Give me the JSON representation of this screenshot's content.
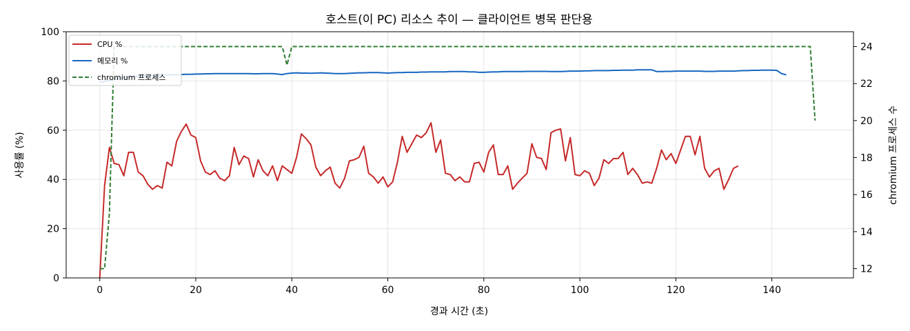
{
  "chart_data": {
    "type": "line",
    "title": "호스트(이 PC) 리소스 추이 — 클라이언트 병목 판단용",
    "xlabel": "경과 시간 (초)",
    "ylabel": "사용률 (%)",
    "y2label": "chromium 프로세스 수",
    "xlim": [
      -7,
      157
    ],
    "ylim": [
      0,
      100
    ],
    "y2lim": [
      11.5,
      24.8
    ],
    "xticks": [
      0,
      20,
      40,
      60,
      80,
      100,
      120,
      140
    ],
    "yticks": [
      0,
      20,
      40,
      60,
      80,
      100
    ],
    "y2ticks": [
      12,
      14,
      16,
      18,
      20,
      22,
      24
    ],
    "grid": true,
    "legend_position": "top-left",
    "series": [
      {
        "name": "CPU %",
        "axis": "left",
        "color": "#c62828",
        "style": "solid",
        "x_start": 0,
        "x_step": 1,
        "values": [
          0,
          37.5,
          53,
          46.5,
          46,
          41.5,
          51,
          51,
          43,
          41.5,
          38,
          36,
          37.5,
          36.5,
          47,
          45.5,
          55.5,
          59.5,
          62.5,
          58,
          57,
          47.5,
          43,
          42,
          43.5,
          40.5,
          39.5,
          41.5,
          53,
          46,
          49.5,
          48.5,
          41,
          48,
          43.5,
          41.5,
          45.5,
          39.5,
          45.5,
          44,
          42.5,
          49,
          58.5,
          56.5,
          54,
          45,
          41.5,
          43.5,
          45,
          38.5,
          36.5,
          40.5,
          47.5,
          48,
          49,
          53.5,
          42.5,
          41,
          38.5,
          41,
          37,
          39,
          47,
          57.5,
          51,
          54.5,
          58,
          57,
          59,
          63,
          51,
          56,
          42.5,
          42,
          39.5,
          41,
          39,
          39,
          46.5,
          47,
          43,
          51,
          54,
          42,
          42,
          45.5,
          36,
          38.5,
          40.5,
          42.5,
          54.5,
          49,
          48.5,
          44,
          59,
          60,
          60.5,
          47.5,
          57,
          42,
          41.5,
          43.5,
          42.5,
          37.5,
          40.5,
          48,
          46.5,
          48.5,
          48.5,
          51,
          42,
          44.5,
          42,
          38.5,
          39,
          38.5,
          44.5,
          52,
          48,
          50.5,
          46.5,
          52,
          57.5,
          57.5,
          50,
          57.5,
          44.5,
          41,
          43.5,
          44.5,
          36,
          40,
          44.5,
          45.5
        ]
      },
      {
        "name": "메모리 %",
        "axis": "left",
        "color": "#1565c0",
        "style": "solid",
        "x_start": 0,
        "x_step": 1,
        "values": [
          79.5,
          79.8,
          80.2,
          80.7,
          81,
          81.3,
          81.6,
          81.8,
          82,
          82.1,
          82.2,
          82.3,
          82.4,
          82.4,
          82.5,
          82.5,
          82.5,
          82.6,
          82.7,
          82.7,
          82.8,
          82.8,
          82.9,
          82.9,
          83,
          83,
          83,
          83,
          83,
          83,
          83,
          83,
          82.9,
          82.9,
          83,
          83,
          83,
          82.8,
          82.6,
          83,
          83.2,
          83.3,
          83.2,
          83.2,
          83.1,
          83.2,
          83.3,
          83.2,
          83.1,
          83,
          83,
          83,
          83.1,
          83.2,
          83.3,
          83.3,
          83.4,
          83.4,
          83.4,
          83.3,
          83.2,
          83.3,
          83.4,
          83.4,
          83.5,
          83.5,
          83.5,
          83.6,
          83.6,
          83.7,
          83.7,
          83.7,
          83.7,
          83.8,
          83.8,
          83.8,
          83.8,
          83.7,
          83.7,
          83.5,
          83.5,
          83.6,
          83.7,
          83.7,
          83.8,
          83.8,
          83.8,
          83.8,
          83.8,
          83.9,
          83.9,
          83.9,
          83.9,
          83.9,
          83.8,
          83.8,
          83.8,
          83.9,
          84,
          84,
          84,
          84.1,
          84.1,
          84.2,
          84.2,
          84.2,
          84.2,
          84.3,
          84.3,
          84.4,
          84.4,
          84.4,
          84.5,
          84.5,
          84.5,
          84.5,
          83.8,
          83.8,
          83.9,
          83.9,
          84,
          84,
          84,
          84,
          84,
          84,
          83.9,
          83.9,
          83.9,
          84,
          84,
          84,
          84,
          84.1,
          84.2,
          84.2,
          84.3,
          84.3,
          84.4,
          84.4,
          84.4,
          84.3,
          83,
          82.5
        ]
      },
      {
        "name": "chromium 프로세스",
        "axis": "right",
        "color": "#2e7d32",
        "style": "dashed",
        "x": [
          0,
          1,
          2,
          3,
          38,
          39,
          40,
          148,
          149
        ],
        "values": [
          12,
          12,
          15,
          24,
          24,
          23,
          24,
          24,
          20
        ]
      }
    ]
  }
}
